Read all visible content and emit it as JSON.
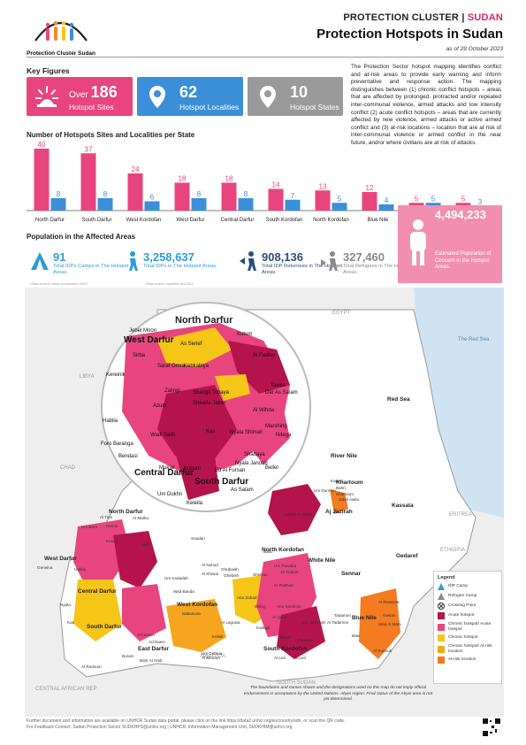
{
  "header": {
    "logo_caption": "Protection Cluster Sudan",
    "cluster": "PROTECTION CLUSTER | ",
    "cluster_country": "SUDAN",
    "title": "Protection Hotspots in Sudan",
    "as_of": "as of 29 October 2023"
  },
  "key_figures": {
    "title": "Key Figures",
    "items": [
      {
        "prefix": "Over",
        "value": "186",
        "label": "Hotspot Sites",
        "color": "#e8457f",
        "icon": "hotspot-burst-icon"
      },
      {
        "prefix": "",
        "value": "62",
        "label": "Hotspot Localities",
        "color": "#3b8fd8",
        "icon": "location-pin-icon"
      },
      {
        "prefix": "",
        "value": "10",
        "label": "Hotspot States",
        "color": "#9a9a9a",
        "icon": "location-pin-icon"
      }
    ]
  },
  "intro": "The Protection Sector hotspot mapping identifies conflict and at-risk areas to provide early warning and inform preventative and response action. The mapping distinguishes between (1) chronic conflict hotspots – areas that are affected by prolonged, protracted and/or repeated inter-communal violence, armed attacks and low intensity conflict (2) acute conflict hotspots – areas that are currently affected by new violence, armed attacks or active armed conflict and (3) at-risk locations – location that are at risk of inter-communal violence or armed conflict in the near future, and/or where civilians are at risk of attacks.",
  "chart_title": "Number of Hotspots Sites and Localities per State",
  "chart_data": {
    "type": "bar",
    "categories": [
      "North Darfur",
      "South Darfur",
      "West Kordofan",
      "West Darfur",
      "Central Darfur",
      "South Kordofan",
      "North Kordofan",
      "Blue Nile",
      "Khartoum",
      "East Darfur"
    ],
    "series": [
      {
        "name": "Hotspot Sites",
        "values": [
          40,
          37,
          24,
          18,
          18,
          14,
          13,
          12,
          5,
          5
        ],
        "color": "#e8457f"
      },
      {
        "name": "Hotspot Localities",
        "values": [
          8,
          8,
          6,
          8,
          8,
          7,
          5,
          4,
          5,
          3
        ],
        "color": "#3b8fd8"
      }
    ],
    "ylim": [
      0,
      40
    ],
    "grid": false
  },
  "population": {
    "title": "Population in the Affected Areas",
    "items": [
      {
        "value": "91",
        "label": "Total IDPs Camps in The Hotspot Areas.",
        "note": "*Data source: camp coordination 2023",
        "color": "#2f9bd6",
        "icon": "tent-icon"
      },
      {
        "value": "3,258,637",
        "label": "Total IDPs in The Hotspot Areas.",
        "note": "*Data source: updated Oct 2023",
        "color": "#2f9bd6",
        "icon": "person-walking-icon"
      },
      {
        "value": "908,136",
        "label": "Total IDP Returnees in The Hotspot Areas.",
        "note": "",
        "color": "#2b4e7c",
        "icon": "returnee-icon"
      },
      {
        "value": "327,460",
        "label": "Total Refugees in The Hotspot Areas.",
        "note": "",
        "color": "#8a8a8a",
        "icon": "refugee-icon"
      }
    ],
    "concern": {
      "value": "4,494,233",
      "label": "Estimated Population of Concern in the Hotspot Areas.",
      "color": "#f28fb0"
    }
  },
  "map": {
    "inset_title": "North Darfur",
    "inset_labels": [
      "Jebel Moon",
      "West Darfur",
      "Sirba",
      "As Serief",
      "Kutum",
      "Al Fasher",
      "Saraf Omra",
      "Kebkabiya",
      "Kereinik",
      "Tawila",
      "Dar As Salam",
      "Zalingi",
      "Shangil Tobaya",
      "Shearia Jabel",
      "Azum",
      "Al Wihda",
      "Habila",
      "Kas",
      "Wadi Salih",
      "Nyala Shimali",
      "Marshing",
      "Nitega",
      "Foro Baranga",
      "Bendasi",
      "Shattaya",
      "Nyala Janoub",
      "Bellel",
      "Mukjar",
      "Kubum",
      "Ed Al Fursan",
      "Central Darfur",
      "South Darfur",
      "Um Dukhn",
      "As Salam",
      "Keleila"
    ],
    "country_labels": [
      "EGYPT",
      "LIBYA",
      "CHAD",
      "ERITREA",
      "ETHIOPIA",
      "SOUTH SUDAN",
      "CENTRAL AFRICAN REP",
      "Abyei PCA"
    ],
    "sea_label": "The Red Sea",
    "state_labels": [
      "Red Sea",
      "River Nile",
      "Khartoum",
      "Kassala",
      "Aj Jazirah",
      "Gedaref",
      "Sennar",
      "Blue Nile",
      "White Nile",
      "North Kordofan",
      "West Kordofan",
      "South Kordofan",
      "East Darfur",
      "North Darfur",
      "West Darfur",
      "South Darfur",
      "Central Darfur"
    ],
    "place_labels": [
      "Karrari",
      "Bahri",
      "Um Durman",
      "Khartoum",
      "Jabel Awila",
      "Gebrat Al Sheikh",
      "Al Tina",
      "Kernoi",
      "Um Baru",
      "Kutum",
      "Al Malha",
      "Mellit",
      "Soudari",
      "Bara",
      "Um Rawaba",
      "Er Rahad",
      "Sheikan",
      "Ar Rashad",
      "Abu Kershola",
      "Al Quoz",
      "Habila",
      "Dilling",
      "Talodi",
      "Al Leri",
      "Kadugli",
      "Um Dafouq",
      "Al Radoum",
      "Buram",
      "Ed Daein",
      "Nyala",
      "Kas",
      "Geneina",
      "Al Roseires",
      "Geisan",
      "Al Kurmuk",
      "Baw",
      "Wad Al Mahi",
      "Tadamon",
      "Al Tadamon",
      "Abu Jubaihah",
      "Ghadeer",
      "Al Leri",
      "Babanusa",
      "Keilak",
      "Al Lagowa",
      "Abu Zabad",
      "Ghubaish",
      "Al Khiwai",
      "Um Kedadah",
      "Wad Banda",
      "Al Nuhud",
      "Ghebish",
      "Ad Daein",
      "Bahr Al Arab",
      "Al Meiram"
    ],
    "legend_title": "Legend",
    "legend": [
      {
        "label": "IDP Camp",
        "color": "#2f9bd6",
        "icon": "tent-icon"
      },
      {
        "label": "Refugee Camp",
        "color": "#888888",
        "icon": "tent-icon"
      },
      {
        "label": "Crossing Point",
        "color": "#333333",
        "icon": "crossing-point-icon"
      },
      {
        "label": "Acute hotspot",
        "color": "#b5134b"
      },
      {
        "label": "Chronic hotspot/ Acute hotspot",
        "color": "#e8457f"
      },
      {
        "label": "Chronic hotspot",
        "color": "#f5c518"
      },
      {
        "label": "Chronic hotspot/ At-risk location",
        "color": "#f7a51e"
      },
      {
        "label": "At-risk location",
        "color": "#f47b20"
      }
    ],
    "disclaimer": "The boundaries and names shown and the designations used on this map do not imply official endorsement or acceptance by the United Nations. Abyei region: Final status of the Abyei area is not yet determined."
  },
  "footer": {
    "line1": "Further document and information are available on UNHCR Sudan data portal, please click on the link https://data2.unhcr.org/en/country/sdn, or scan the QR code.",
    "line2": "For Feedback Contact: Sudan Protection Sector SUDKHPS@unhcr.org | UNHCR, Information Management Unit, SUDKHIM@unhcr.org"
  }
}
